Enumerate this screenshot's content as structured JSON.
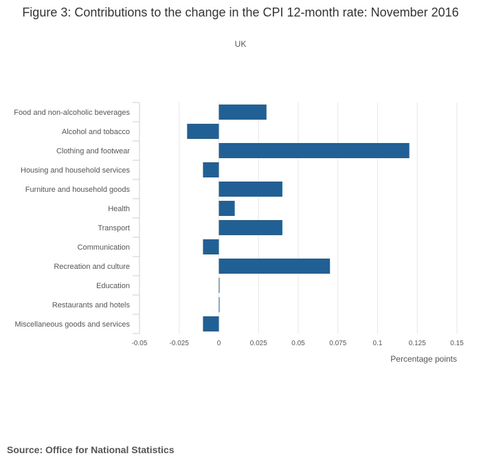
{
  "header": {
    "title": "Figure 3: Contributions to the change in the CPI 12-month rate: November 2016",
    "subtitle": "UK"
  },
  "footer": {
    "source": "Source: Office for National Statistics"
  },
  "colors": {
    "bar": "#206095",
    "grid": "#e6e6e6",
    "axis": "#cccccc",
    "text": "#555555"
  },
  "chart_data": {
    "type": "bar",
    "orientation": "horizontal",
    "title": "Figure 3: Contributions to the change in the CPI 12-month rate: November 2016",
    "subtitle": "UK",
    "xlabel": "Percentage points",
    "ylabel": "",
    "xlim": [
      -0.05,
      0.15
    ],
    "xticks": [
      -0.05,
      -0.025,
      0,
      0.025,
      0.05,
      0.075,
      0.1,
      0.125,
      0.15
    ],
    "xtick_labels": [
      "-0.05",
      "-0.025",
      "0",
      "0.025",
      "0.05",
      "0.075",
      "0.1",
      "0.125",
      "0.15"
    ],
    "grid": true,
    "legend": "none",
    "categories": [
      "Food and non-alcoholic beverages",
      "Alcohol and tobacco",
      "Clothing and footwear",
      "Housing and household services",
      "Furniture and household goods",
      "Health",
      "Transport",
      "Communication",
      "Recreation and culture",
      "Education",
      "Restaurants and hotels",
      "Miscellaneous goods and services"
    ],
    "values": [
      0.03,
      -0.02,
      0.12,
      -0.01,
      0.04,
      0.01,
      0.04,
      -0.01,
      0.07,
      0.0,
      0.0,
      -0.01
    ]
  }
}
